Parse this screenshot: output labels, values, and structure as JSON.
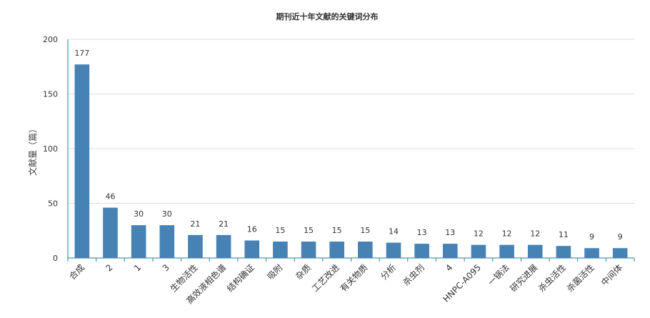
{
  "chart_data": {
    "type": "bar",
    "title": "期刊近十年文献的关键词分布",
    "xlabel": "",
    "ylabel": "文献量（篇）",
    "ylim": [
      0,
      200
    ],
    "yticks": [
      0,
      50,
      100,
      150,
      200
    ],
    "grid": true,
    "categories": [
      "合成",
      "2",
      "1",
      "3",
      "生物活性",
      "高效液相色谱",
      "结构确证",
      "吸附",
      "杂质",
      "工艺改进",
      "有关物质",
      "分析",
      "杀虫剂",
      "4",
      "HNPC-A095",
      "一锅法",
      "研究进展",
      "杀虫活性",
      "杀菌活性",
      "中间体"
    ],
    "values": [
      177,
      46,
      30,
      30,
      21,
      21,
      16,
      15,
      15,
      15,
      15,
      14,
      13,
      13,
      12,
      12,
      12,
      11,
      9,
      9
    ],
    "colors": {
      "bar": "#4682b4",
      "axis": "#1a8a9a",
      "grid": "#dddddd"
    }
  }
}
